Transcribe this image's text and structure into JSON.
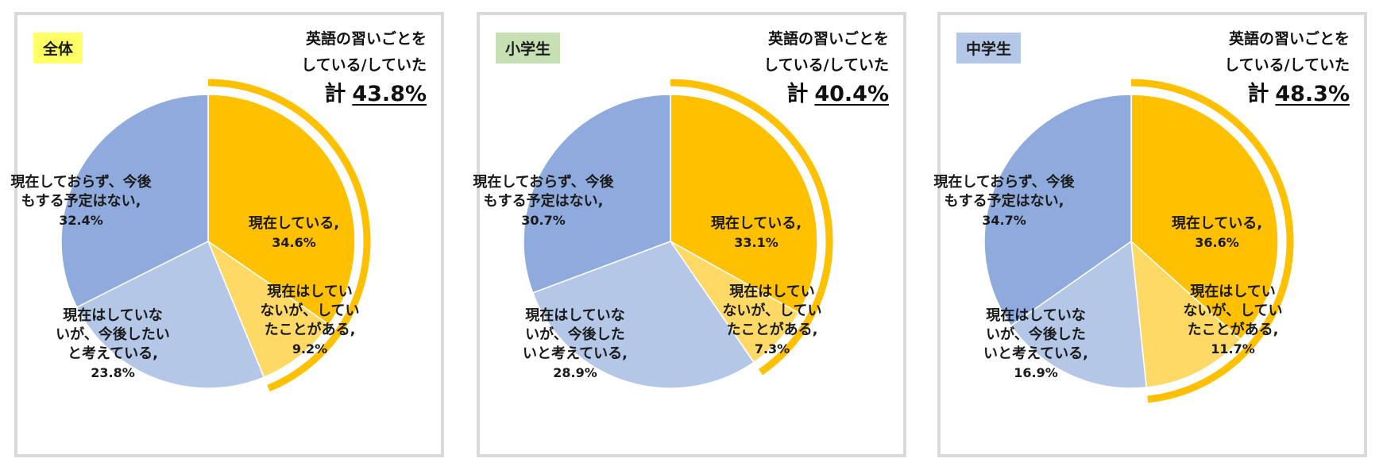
{
  "colors": {
    "current": "#ffc000",
    "past": "#ffd966",
    "future": "#b4c7e7",
    "none": "#8faadc",
    "bracket": "#ffc000",
    "border": "#d9d9d9"
  },
  "headline": {
    "line1": "英語の習いごとを",
    "line2": "している/していた",
    "total_label": "計"
  },
  "chart_data": [
    {
      "type": "pie",
      "title": "全体",
      "tag_color": "#ffff66",
      "total": "43.8%",
      "slices": [
        {
          "name_lines": [
            "現在している,"
          ],
          "value": 34.6,
          "label": "34.6%",
          "color_key": "current"
        },
        {
          "name_lines": [
            "現在はしてい",
            "ないが、してい",
            "たことがある,"
          ],
          "value": 9.2,
          "label": "9.2%",
          "color_key": "past"
        },
        {
          "name_lines": [
            "現在はしていな",
            "いが、今後したい",
            "と考えている,"
          ],
          "value": 23.8,
          "label": "23.8%",
          "color_key": "future"
        },
        {
          "name_lines": [
            "現在しておらず、今後",
            "もする予定はない,"
          ],
          "value": 32.4,
          "label": "32.4%",
          "color_key": "none"
        }
      ]
    },
    {
      "type": "pie",
      "title": "小学生",
      "tag_color": "#c6e0b4",
      "total": "40.4%",
      "slices": [
        {
          "name_lines": [
            "現在している,"
          ],
          "value": 33.1,
          "label": "33.1%",
          "color_key": "current"
        },
        {
          "name_lines": [
            "現在はしてい",
            "ないが、してい",
            "たことがある,"
          ],
          "value": 7.3,
          "label": "7.3%",
          "color_key": "past"
        },
        {
          "name_lines": [
            "現在はしていな",
            "いが、今後した",
            "いと考えている,"
          ],
          "value": 28.9,
          "label": "28.9%",
          "color_key": "future"
        },
        {
          "name_lines": [
            "現在しておらず、今後",
            "もする予定はない,"
          ],
          "value": 30.7,
          "label": "30.7%",
          "color_key": "none"
        }
      ]
    },
    {
      "type": "pie",
      "title": "中学生",
      "tag_color": "#b4c7e7",
      "total": "48.3%",
      "slices": [
        {
          "name_lines": [
            "現在している,"
          ],
          "value": 36.6,
          "label": "36.6%",
          "color_key": "current"
        },
        {
          "name_lines": [
            "現在はしてい",
            "ないが、してい",
            "たことがある,"
          ],
          "value": 11.7,
          "label": "11.7%",
          "color_key": "past"
        },
        {
          "name_lines": [
            "現在はしていな",
            "いが、今後した",
            "いと考えている,"
          ],
          "value": 16.9,
          "label": "16.9%",
          "color_key": "future"
        },
        {
          "name_lines": [
            "現在しておらず、今後",
            "もする予定はない,"
          ],
          "value": 34.7,
          "label": "34.7%",
          "color_key": "none"
        }
      ]
    }
  ]
}
